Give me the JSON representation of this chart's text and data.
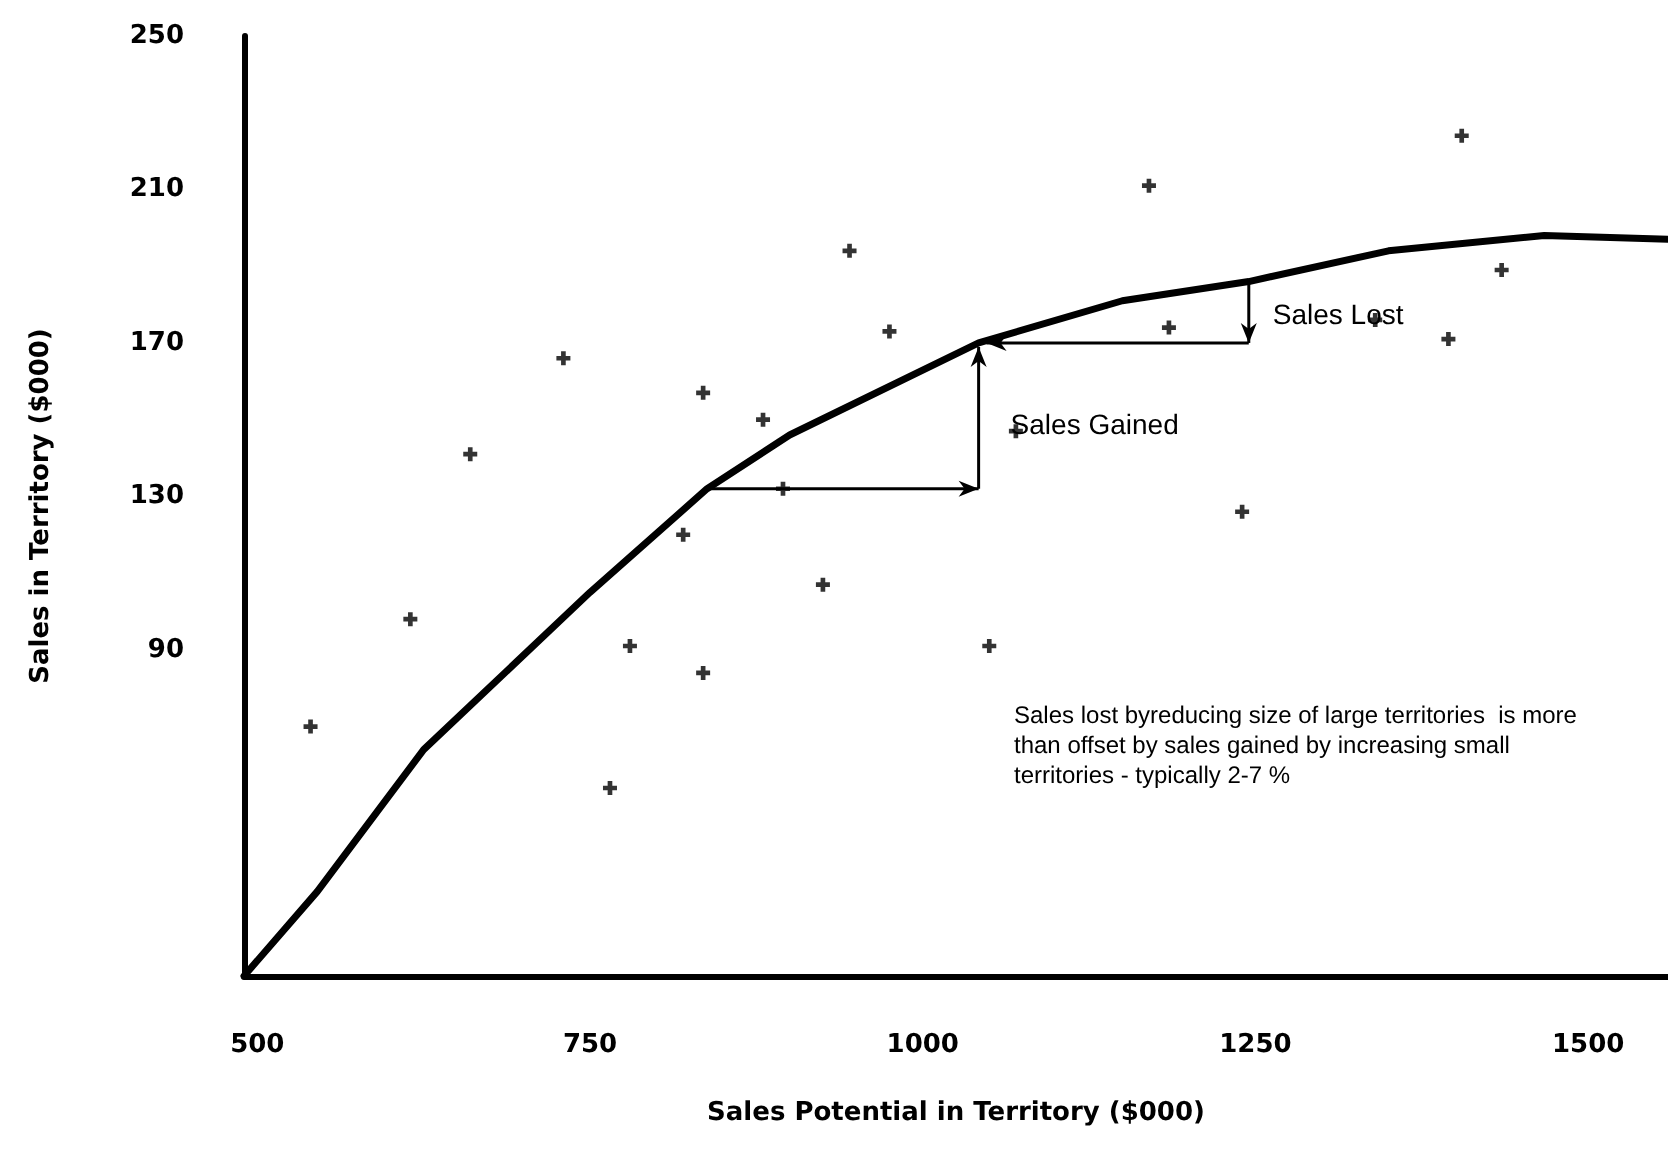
{
  "chart_data": {
    "type": "scatter",
    "xlabel": "Sales Potential in Territory ($000)",
    "ylabel": "Sales in Territory ($000)",
    "xlim": [
      490,
      1560
    ],
    "xticks": [
      500,
      750,
      1000,
      1250,
      1500
    ],
    "ylim": [
      5,
      250
    ],
    "yticks": [
      90,
      130,
      170,
      210,
      250
    ],
    "grid": false,
    "marker": "cross",
    "series": [
      {
        "color": "#000000",
        "x": [
          540,
          615,
          660,
          730,
          780,
          835,
          765,
          820,
          925,
          835,
          880,
          945,
          975,
          895,
          1170,
          1405,
          1435,
          1395,
          1340,
          1185,
          1240,
          1070,
          1050
        ],
        "values": [
          70,
          98,
          141,
          166,
          91,
          84,
          54,
          120,
          107,
          157,
          150,
          194,
          173,
          132,
          211,
          224,
          189,
          171,
          176,
          174,
          126,
          147,
          91
        ]
      },
      {
        "type": "line",
        "color": "#000000",
        "marker": "none",
        "x": [
          490,
          545,
          625,
          750,
          838,
          900,
          1042,
          1150,
          1245,
          1350,
          1467,
          1560
        ],
        "values": [
          5,
          27,
          64,
          105,
          132,
          146,
          170,
          181,
          186,
          194,
          198,
          197
        ]
      }
    ],
    "annotations": [
      "Sales Gained",
      {
        "text": "Sales Lost",
        "x": 1042,
        "y": 170
      },
      "Sales lost byreducing size of large territories  is more than offset by sales gained by increasing small territories - typically 2-7 %"
    ]
  }
}
